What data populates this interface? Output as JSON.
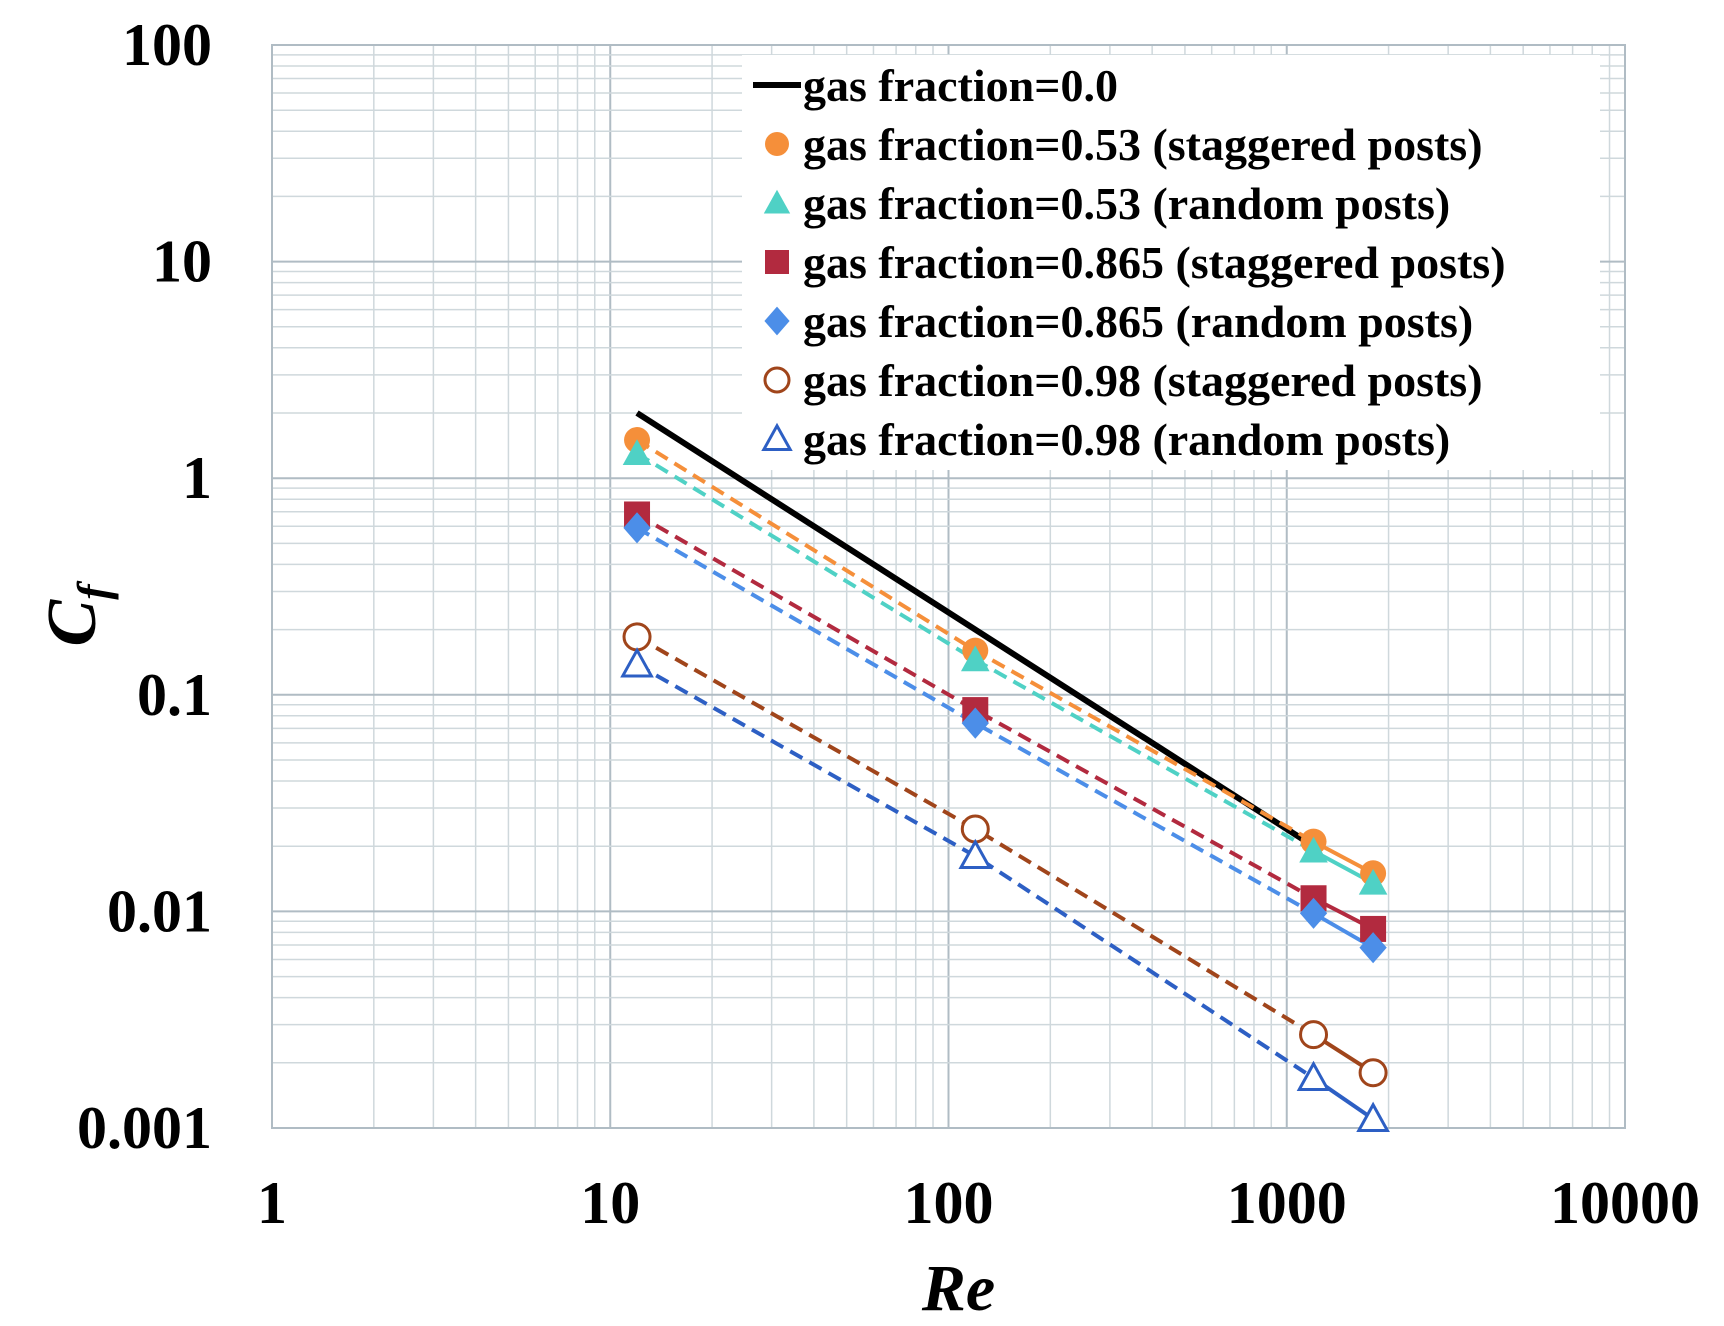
{
  "chart_data": {
    "type": "scatter",
    "title": "",
    "xlabel": "Re",
    "ylabel": "C",
    "ylabel_subscript": "f",
    "xscale": "log",
    "yscale": "log",
    "xlim": [
      1,
      10000
    ],
    "ylim": [
      0.001,
      100
    ],
    "x_ticks": [
      {
        "value": 1,
        "label": "1"
      },
      {
        "value": 10,
        "label": "10"
      },
      {
        "value": 100,
        "label": "100"
      },
      {
        "value": 1000,
        "label": "1000"
      },
      {
        "value": 10000,
        "label": "10000"
      }
    ],
    "y_ticks": [
      {
        "value": 0.001,
        "label": "0.001"
      },
      {
        "value": 0.01,
        "label": "0.01"
      },
      {
        "value": 0.1,
        "label": "0.1"
      },
      {
        "value": 1,
        "label": "1"
      },
      {
        "value": 10,
        "label": "10"
      },
      {
        "value": 100,
        "label": "100"
      }
    ],
    "grid": true,
    "legend_position": "top-right",
    "series": [
      {
        "name": "gas fraction=0.0",
        "marker": "line",
        "color": "#000000",
        "line_style": "solid",
        "x": [
          12,
          1200
        ],
        "y": [
          2.0,
          0.02
        ]
      },
      {
        "name": "gas fraction=0.53 (staggered posts)",
        "marker": "circle",
        "filled": true,
        "color": "#F58F3A",
        "line_style": "dashed",
        "x": [
          12,
          120,
          1200,
          1800
        ],
        "y": [
          1.5,
          0.16,
          0.021,
          0.015
        ]
      },
      {
        "name": "gas fraction=0.53 (random posts)",
        "marker": "triangle",
        "filled": true,
        "color": "#4FD1C5",
        "line_style": "dashed",
        "x": [
          12,
          120,
          1200,
          1800
        ],
        "y": [
          1.3,
          0.145,
          0.019,
          0.0135
        ]
      },
      {
        "name": "gas fraction=0.865 (staggered posts)",
        "marker": "square",
        "filled": true,
        "color": "#B22A3F",
        "line_style": "dashed",
        "x": [
          12,
          120,
          1200,
          1800
        ],
        "y": [
          0.68,
          0.085,
          0.0115,
          0.0083
        ]
      },
      {
        "name": "gas fraction=0.865 (random posts)",
        "marker": "diamond",
        "filled": true,
        "color": "#4C8EE8",
        "line_style": "dashed",
        "x": [
          12,
          120,
          1200,
          1800
        ],
        "y": [
          0.59,
          0.074,
          0.0098,
          0.0068
        ]
      },
      {
        "name": "gas fraction=0.98 (staggered posts)",
        "marker": "circle",
        "filled": false,
        "color": "#A0451B",
        "line_style": "dashed",
        "x": [
          12,
          120,
          1200,
          1800
        ],
        "y": [
          0.185,
          0.024,
          0.0027,
          0.0018
        ]
      },
      {
        "name": "gas fraction=0.98 (random posts)",
        "marker": "triangle",
        "filled": false,
        "color": "#2D5FC4",
        "line_style": "dashed",
        "x": [
          12,
          120,
          1200,
          1800
        ],
        "y": [
          0.138,
          0.018,
          0.0017,
          0.0011
        ]
      }
    ]
  }
}
